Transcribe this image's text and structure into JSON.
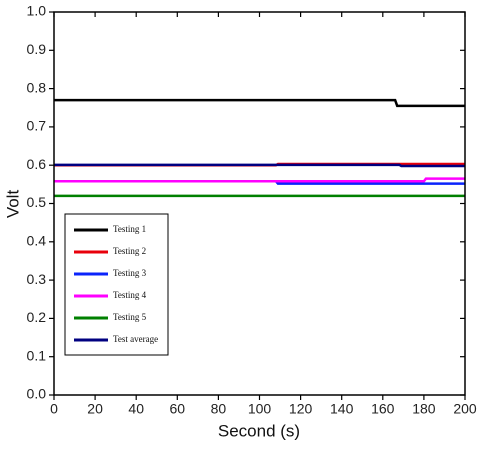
{
  "chart_data": {
    "type": "line",
    "x_label": "Second (s)",
    "y_label": "Volt",
    "xlim": [
      0,
      200
    ],
    "xticks": [
      0,
      20,
      40,
      60,
      80,
      100,
      120,
      140,
      160,
      180,
      200
    ],
    "ylim": [
      0,
      1
    ],
    "yticks": [
      {
        "value": 0,
        "label": "0.0"
      },
      0.1,
      0.2,
      0.3,
      0.4,
      0.5,
      0.6,
      0.7,
      0.8,
      0.9,
      {
        "value": 1,
        "label": "1.0"
      }
    ],
    "series": [
      {
        "name": "Testing 1",
        "color": "#000000",
        "x": [
          0,
          166,
          167,
          200
        ],
        "values": [
          0.77,
          0.77,
          0.755,
          0.755
        ]
      },
      {
        "name": "Testing 2",
        "color": "#e8000b",
        "x": [
          0,
          108,
          109,
          200
        ],
        "values": [
          0.6,
          0.6,
          0.603,
          0.603
        ]
      },
      {
        "name": "Testing 3",
        "color": "#0b24fb",
        "x": [
          0,
          108,
          109,
          200
        ],
        "values": [
          0.558,
          0.558,
          0.552,
          0.552
        ]
      },
      {
        "name": "Testing 4",
        "color": "#ff00ff",
        "x": [
          0,
          180,
          181,
          200
        ],
        "values": [
          0.558,
          0.558,
          0.565,
          0.565
        ]
      },
      {
        "name": "Testing 5",
        "color": "#008000",
        "x": [
          0,
          200
        ],
        "values": [
          0.52,
          0.52
        ]
      },
      {
        "name": "Test average",
        "color": "#000080",
        "x": [
          0,
          168,
          169,
          200
        ],
        "values": [
          0.601,
          0.601,
          0.598,
          0.598
        ]
      }
    ]
  }
}
